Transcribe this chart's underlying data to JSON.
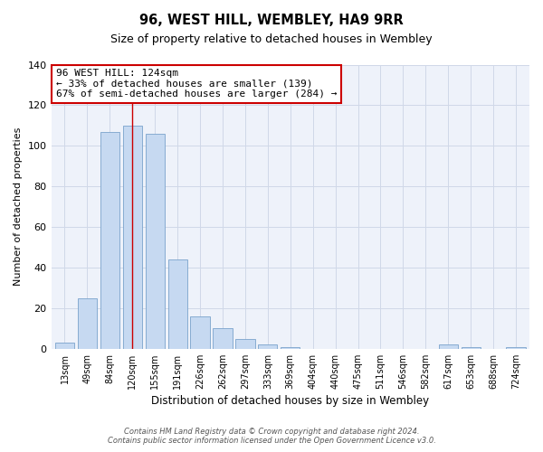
{
  "title": "96, WEST HILL, WEMBLEY, HA9 9RR",
  "subtitle": "Size of property relative to detached houses in Wembley",
  "xlabel": "Distribution of detached houses by size in Wembley",
  "ylabel": "Number of detached properties",
  "bar_labels": [
    "13sqm",
    "49sqm",
    "84sqm",
    "120sqm",
    "155sqm",
    "191sqm",
    "226sqm",
    "262sqm",
    "297sqm",
    "333sqm",
    "369sqm",
    "404sqm",
    "440sqm",
    "475sqm",
    "511sqm",
    "546sqm",
    "582sqm",
    "617sqm",
    "653sqm",
    "688sqm",
    "724sqm"
  ],
  "bar_values": [
    3,
    25,
    107,
    110,
    106,
    44,
    16,
    10,
    5,
    2,
    1,
    0,
    0,
    0,
    0,
    0,
    0,
    2,
    1,
    0,
    1
  ],
  "bar_color": "#c6d9f1",
  "bar_edge_color": "#7aa3cc",
  "ylim": [
    0,
    140
  ],
  "yticks": [
    0,
    20,
    40,
    60,
    80,
    100,
    120,
    140
  ],
  "annotation_box_text": "96 WEST HILL: 124sqm\n← 33% of detached houses are smaller (139)\n67% of semi-detached houses are larger (284) →",
  "annotation_box_color": "#ffffff",
  "annotation_box_edge_color": "#cc0000",
  "footer_line1": "Contains HM Land Registry data © Crown copyright and database right 2024.",
  "footer_line2": "Contains public sector information licensed under the Open Government Licence v3.0.",
  "property_bar_index": 3,
  "property_line_color": "#cc0000",
  "grid_color": "#d0d8e8",
  "background_color": "#ffffff",
  "plot_bg_color": "#eef2fa"
}
